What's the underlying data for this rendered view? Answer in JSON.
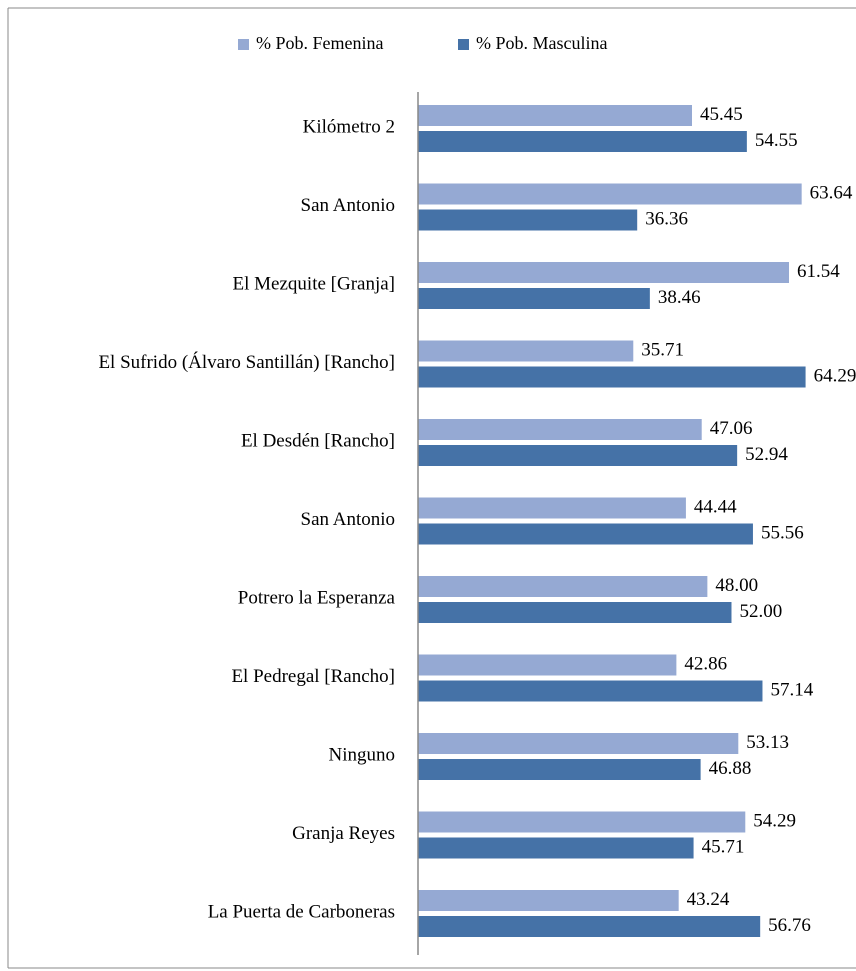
{
  "chart_data": {
    "type": "hbar",
    "categories": [
      "Kilómetro 2",
      "San Antonio",
      "El Mezquite [Granja]",
      "El Sufrido (Álvaro Santillán) [Rancho]",
      "El Desdén [Rancho]",
      "San Antonio",
      "Potrero la Esperanza",
      "El Pedregal [Rancho]",
      "Ninguno",
      "Granja Reyes",
      "La Puerta de Carboneras"
    ],
    "series": [
      {
        "name": "% Pob. Femenina",
        "color": "#95a9d3",
        "values": [
          45.45,
          63.64,
          61.54,
          35.71,
          47.06,
          44.44,
          48.0,
          42.86,
          53.13,
          54.29,
          43.24
        ],
        "value_labels": [
          "45.45",
          "63.64",
          "61.54",
          "35.71",
          "47.06",
          "44.44",
          "48.00",
          "42.86",
          "53.13",
          "54.29",
          "43.24"
        ]
      },
      {
        "name": "% Pob. Masculina",
        "color": "#4572a7",
        "values": [
          54.55,
          36.36,
          38.46,
          64.29,
          52.94,
          55.56,
          52.0,
          57.14,
          46.88,
          45.71,
          56.76
        ],
        "value_labels": [
          "54.55",
          "36.36",
          "38.46",
          "64.29",
          "52.94",
          "55.56",
          "52.00",
          "57.14",
          "46.88",
          "45.71",
          "56.76"
        ]
      }
    ],
    "xlim": [
      0,
      70
    ],
    "legend": "top"
  }
}
